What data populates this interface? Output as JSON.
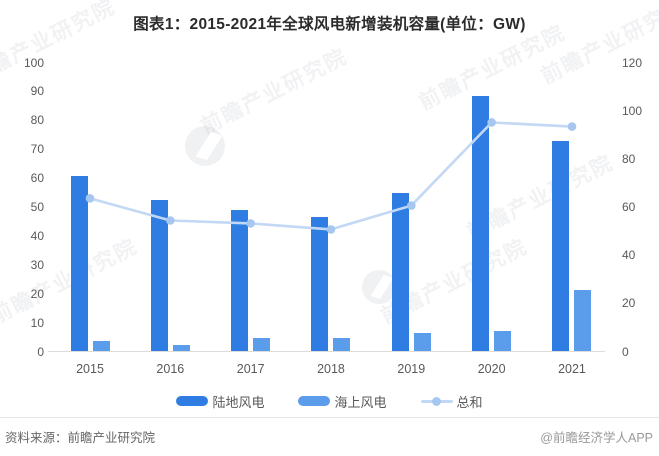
{
  "title": "图表1：2015-2021年全球风电新增装机容量(单位：GW)",
  "footer": {
    "source": "资料来源：前瞻产业研究院",
    "brand": "@前瞻经济学人APP"
  },
  "watermark": {
    "text": "前瞻产业研究院"
  },
  "colors": {
    "onshore_bar": "#2f7de2",
    "offshore_bar": "#5b9ceb",
    "total_line": "#c2d8f4",
    "total_marker": "#a6c8f0",
    "axis_text": "#595959",
    "baseline": "#dcdcdc"
  },
  "chart_data": {
    "type": "bar",
    "subtype": "grouped-bars-with-line",
    "title": "图表1：2015-2021年全球风电新增装机容量(单位：GW)",
    "categories": [
      "2015",
      "2016",
      "2017",
      "2018",
      "2019",
      "2020",
      "2021"
    ],
    "series": [
      {
        "name": "陆地风电",
        "type": "bar",
        "axis": "left",
        "color": "#2f7de2",
        "values": [
          60.4,
          52.4,
          48.9,
          46.4,
          54.7,
          88.4,
          72.5
        ]
      },
      {
        "name": "海上风电",
        "type": "bar",
        "axis": "left",
        "color": "#5b9ceb",
        "values": [
          3.4,
          2.2,
          4.5,
          4.5,
          6.1,
          6.9,
          21.1
        ]
      },
      {
        "name": "总和",
        "type": "line",
        "axis": "right",
        "color": "#c2d8f4",
        "marker_color": "#a6c8f0",
        "values": [
          63.8,
          54.6,
          53.4,
          50.9,
          60.8,
          95.3,
          93.6
        ]
      }
    ],
    "left_axis": {
      "min": 0,
      "max": 100,
      "step": 10,
      "ticks": [
        0,
        10,
        20,
        30,
        40,
        50,
        60,
        70,
        80,
        90,
        100
      ]
    },
    "right_axis": {
      "min": 0,
      "max": 120,
      "step": 20,
      "ticks": [
        0,
        20,
        40,
        60,
        80,
        100,
        120
      ]
    },
    "grid": false,
    "legend_position": "bottom",
    "legend": [
      "陆地风电",
      "海上风电",
      "总和"
    ],
    "unit": "GW"
  }
}
